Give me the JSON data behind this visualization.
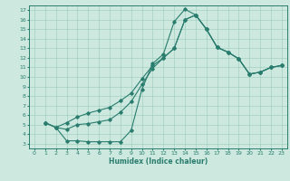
{
  "xlabel": "Humidex (Indice chaleur)",
  "bg_color": "#cce8df",
  "line_color": "#2a7d6e",
  "grid_color": "#99ccbb",
  "xlim": [
    -0.5,
    23.5
  ],
  "ylim": [
    2.5,
    17.5
  ],
  "xticks": [
    0,
    1,
    2,
    3,
    4,
    5,
    6,
    7,
    8,
    9,
    10,
    11,
    12,
    13,
    14,
    15,
    16,
    17,
    18,
    19,
    20,
    21,
    22,
    23
  ],
  "yticks": [
    3,
    4,
    5,
    6,
    7,
    8,
    9,
    10,
    11,
    12,
    13,
    14,
    15,
    16,
    17
  ],
  "line1_x": [
    1,
    2,
    3,
    4,
    5,
    6,
    7,
    8,
    9,
    10,
    11,
    12,
    13,
    14,
    15,
    16,
    17,
    18,
    19,
    20,
    21,
    22,
    23
  ],
  "line1_y": [
    5.2,
    4.7,
    3.3,
    3.3,
    3.2,
    3.2,
    3.2,
    3.2,
    4.4,
    8.7,
    11.4,
    12.4,
    15.8,
    17.1,
    16.5,
    15.0,
    13.1,
    12.6,
    11.9,
    10.3,
    10.5,
    11.0,
    11.2
  ],
  "line2_x": [
    1,
    2,
    3,
    4,
    5,
    6,
    7,
    8,
    9,
    10,
    11,
    12,
    13,
    14,
    15,
    16,
    17,
    18,
    19,
    20,
    21,
    22,
    23
  ],
  "line2_y": [
    5.2,
    4.7,
    4.5,
    5.0,
    5.1,
    5.3,
    5.5,
    6.3,
    7.4,
    9.2,
    10.9,
    12.0,
    13.0,
    16.0,
    16.5,
    15.0,
    13.1,
    12.6,
    11.9,
    10.3,
    10.5,
    11.0,
    11.2
  ],
  "line3_x": [
    1,
    2,
    3,
    4,
    5,
    6,
    7,
    8,
    9,
    10,
    11,
    12,
    13,
    14,
    15,
    16,
    17,
    18,
    19,
    20,
    21,
    22,
    23
  ],
  "line3_y": [
    5.2,
    4.7,
    5.2,
    5.8,
    6.2,
    6.5,
    6.8,
    7.5,
    8.3,
    9.8,
    11.2,
    12.0,
    13.0,
    16.0,
    16.5,
    15.0,
    13.1,
    12.6,
    11.9,
    10.3,
    10.5,
    11.0,
    11.2
  ]
}
